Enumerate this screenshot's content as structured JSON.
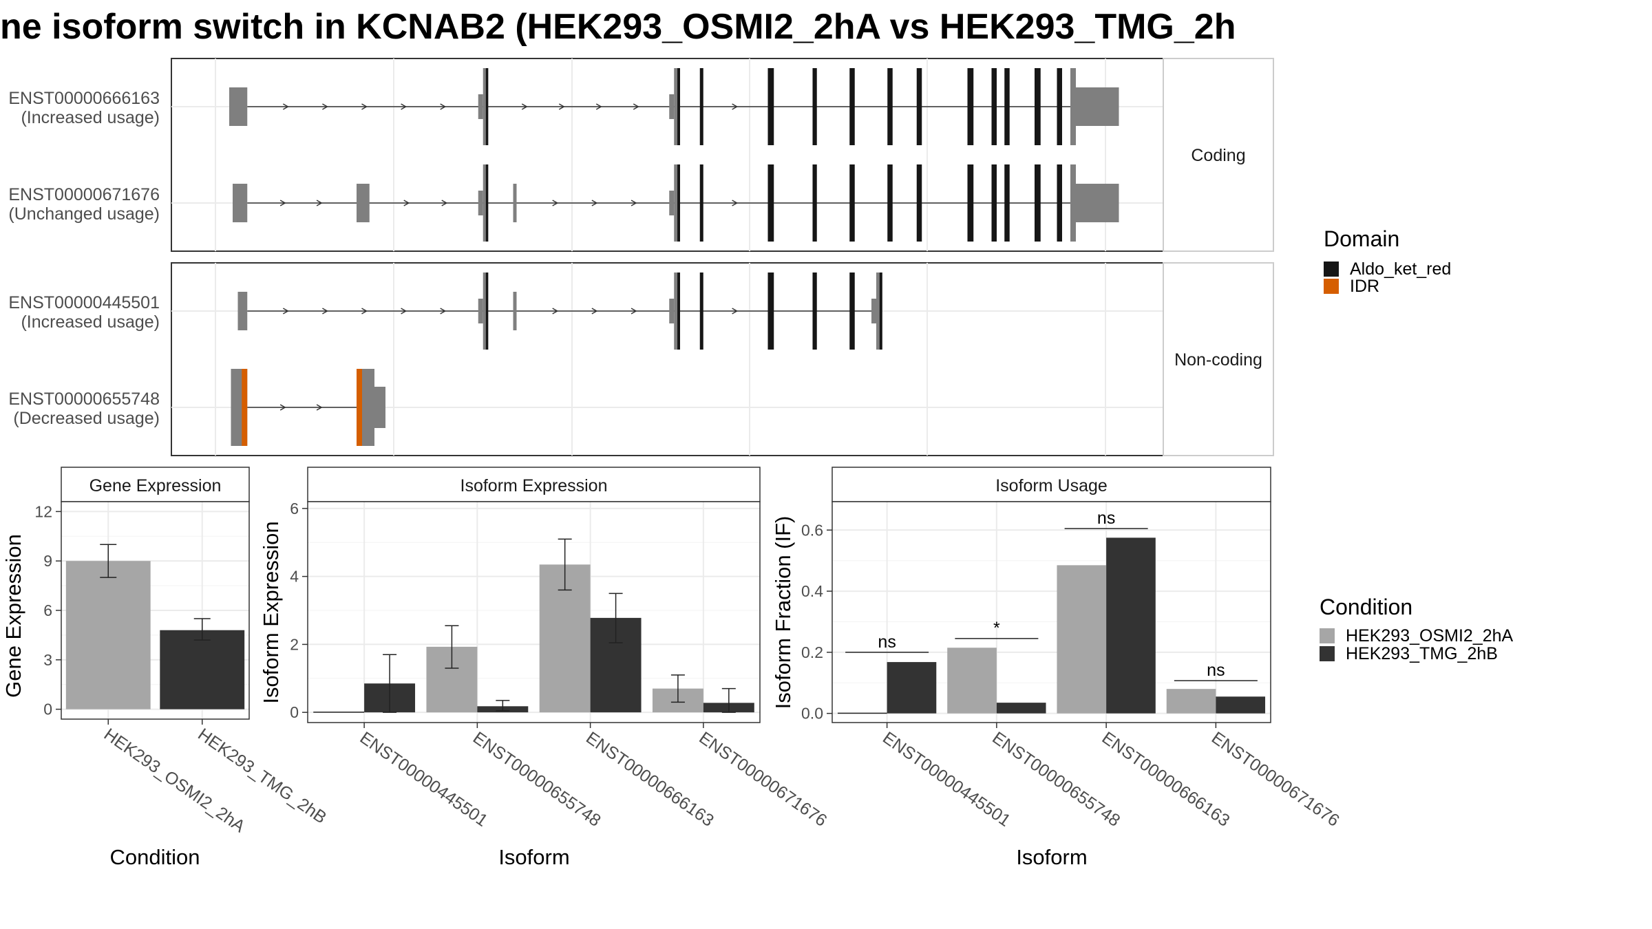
{
  "figure": {
    "title": "ne isoform switch in KCNAB2 (HEK293_OSMI2_2hA vs HEK293_TMG_2h"
  },
  "structure": {
    "facet_labels": [
      "Coding",
      "Non-coding"
    ],
    "transcripts": [
      {
        "id": "ENST00000666163",
        "usage": "(Increased usage)",
        "group": "Coding",
        "exons": [
          [
            0.016,
            0.037,
            "utr"
          ],
          [
            0.311,
            0.317,
            "mixed"
          ],
          [
            0.533,
            0.54,
            "mixed"
          ],
          [
            0.563,
            0.567,
            "cds"
          ],
          [
            0.642,
            0.649,
            "cds"
          ],
          [
            0.694,
            0.699,
            "cds"
          ],
          [
            0.737,
            0.743,
            "cds"
          ],
          [
            0.781,
            0.787,
            "cds"
          ],
          [
            0.815,
            0.821,
            "cds"
          ],
          [
            0.874,
            0.881,
            "cds"
          ],
          [
            0.902,
            0.908,
            "cds"
          ],
          [
            0.917,
            0.923,
            "cds"
          ],
          [
            0.952,
            0.959,
            "cds"
          ],
          [
            0.978,
            0.984,
            "cds"
          ],
          [
            1.0,
            1.05,
            "mixed"
          ]
        ]
      },
      {
        "id": "ENST00000671676",
        "usage": "(Unchanged usage)",
        "group": "Coding",
        "exons": [
          [
            0.02,
            0.037,
            "utr"
          ],
          [
            0.164,
            0.179,
            "utr"
          ],
          [
            0.311,
            0.317,
            "mixed"
          ],
          [
            0.346,
            0.35,
            "utr"
          ],
          [
            0.533,
            0.54,
            "mixed"
          ],
          [
            0.563,
            0.567,
            "cds"
          ],
          [
            0.642,
            0.649,
            "cds"
          ],
          [
            0.694,
            0.699,
            "cds"
          ],
          [
            0.737,
            0.743,
            "cds"
          ],
          [
            0.781,
            0.787,
            "cds"
          ],
          [
            0.815,
            0.821,
            "cds"
          ],
          [
            0.874,
            0.881,
            "cds"
          ],
          [
            0.902,
            0.908,
            "cds"
          ],
          [
            0.917,
            0.923,
            "cds"
          ],
          [
            0.952,
            0.959,
            "cds"
          ],
          [
            0.978,
            0.984,
            "cds"
          ],
          [
            1.0,
            1.05,
            "mixed"
          ]
        ]
      },
      {
        "id": "ENST00000445501",
        "usage": "(Increased usage)",
        "group": "Non-coding",
        "exons": [
          [
            0.026,
            0.037,
            "utr"
          ],
          [
            0.311,
            0.317,
            "mixed"
          ],
          [
            0.346,
            0.35,
            "utr"
          ],
          [
            0.533,
            0.54,
            "mixed"
          ],
          [
            0.563,
            0.567,
            "cds"
          ],
          [
            0.642,
            0.649,
            "cds"
          ],
          [
            0.694,
            0.699,
            "cds"
          ],
          [
            0.737,
            0.743,
            "cds"
          ],
          [
            0.768,
            0.775,
            "mixed"
          ]
        ]
      },
      {
        "id": "ENST00000655748",
        "usage": "(Decreased usage)",
        "group": "Non-coding",
        "exons": [
          [
            0.018,
            0.037,
            "idr-first"
          ],
          [
            0.164,
            0.185,
            "idr-last"
          ]
        ]
      }
    ],
    "domain_legend": {
      "title": "Domain",
      "items": [
        {
          "label": "Aldo_ket_red",
          "color": "#161616"
        },
        {
          "label": "IDR",
          "color": "#d55e00"
        }
      ]
    },
    "utr_color": "#7f7f7f"
  },
  "condition_legend": {
    "title": "Condition",
    "items": [
      {
        "label": "HEK293_OSMI2_2hA",
        "color": "#a6a6a6"
      },
      {
        "label": "HEK293_TMG_2hB",
        "color": "#333333"
      }
    ]
  },
  "chart_data": [
    {
      "type": "bar",
      "title": "Gene Expression",
      "xlabel": "Condition",
      "ylabel": "Gene Expression",
      "categories": [
        "HEK293_OSMI2_2hA",
        "HEK293_TMG_2hB"
      ],
      "values": [
        9.0,
        4.8
      ],
      "error": [
        [
          8.0,
          10.0
        ],
        [
          4.2,
          5.5
        ]
      ],
      "ylim": [
        -0.6,
        12.6
      ],
      "yticks": [
        "0",
        "3",
        "6",
        "9",
        "12"
      ],
      "grid": true
    },
    {
      "type": "bar",
      "title": "Isoform Expression",
      "xlabel": "Isoform",
      "ylabel": "Isoform Expression",
      "categories": [
        "ENST00000445501",
        "ENST00000655748",
        "ENST00000666163",
        "ENST00000671676"
      ],
      "series": [
        {
          "name": "HEK293_OSMI2_2hA",
          "values": [
            0.0,
            1.93,
            4.35,
            0.7
          ],
          "error": [
            [
              0.0,
              0.0
            ],
            [
              1.3,
              2.55
            ],
            [
              3.6,
              5.1
            ],
            [
              0.3,
              1.1
            ]
          ]
        },
        {
          "name": "HEK293_TMG_2hB",
          "values": [
            0.85,
            0.18,
            2.78,
            0.28
          ],
          "error": [
            [
              0.0,
              1.7
            ],
            [
              0.05,
              0.35
            ],
            [
              2.05,
              3.5
            ],
            [
              0.0,
              0.7
            ]
          ]
        }
      ],
      "ylim": [
        -0.3,
        6.2
      ],
      "yticks": [
        "0",
        "2",
        "4",
        "6"
      ],
      "grid": true
    },
    {
      "type": "bar",
      "title": "Isoform Usage",
      "xlabel": "Isoform",
      "ylabel": "Isoform Fraction (IF)",
      "categories": [
        "ENST00000445501",
        "ENST00000655748",
        "ENST00000666163",
        "ENST00000671676"
      ],
      "series": [
        {
          "name": "HEK293_OSMI2_2hA",
          "values": [
            0.0,
            0.215,
            0.485,
            0.08
          ]
        },
        {
          "name": "HEK293_TMG_2hB",
          "values": [
            0.168,
            0.035,
            0.575,
            0.055
          ]
        }
      ],
      "significance": [
        "ns",
        "*",
        "ns",
        "ns"
      ],
      "sig_level": [
        0.2,
        0.245,
        0.605,
        0.107
      ],
      "ylim": [
        -0.03,
        0.693
      ],
      "yticks": [
        "0.0",
        "0.2",
        "0.4",
        "0.6"
      ],
      "grid": true
    }
  ]
}
